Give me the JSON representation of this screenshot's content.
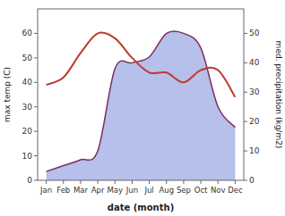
{
  "chart_data": {
    "type": "line",
    "xlabel": "date (month)",
    "ylabel": "max temp (C)",
    "y2label": "med. precipitation (kg/m2)",
    "categories": [
      "Jan",
      "Feb",
      "Mar",
      "Apr",
      "May",
      "Jun",
      "Jul",
      "Aug",
      "Sep",
      "Oct",
      "Nov",
      "Dec"
    ],
    "series": [
      {
        "type": "area",
        "axis": "y2",
        "color": "#aab4e8",
        "values": [
          3,
          5,
          7,
          10,
          38,
          40,
          42,
          50,
          50,
          45,
          25,
          18
        ]
      },
      {
        "type": "line",
        "axis": "y2",
        "color": "#7b3060",
        "values": [
          3,
          5,
          7,
          10,
          38,
          40,
          42,
          50,
          50,
          45,
          25,
          18
        ]
      },
      {
        "type": "line",
        "color": "#c0392b",
        "values": [
          39,
          42,
          52,
          60,
          58,
          50,
          44,
          44,
          40,
          45,
          45,
          34
        ]
      }
    ],
    "ylim": [
      0,
      70
    ],
    "yticks": [
      0,
      10,
      20,
      30,
      40,
      50,
      60
    ],
    "y2lim": [
      0,
      58.33
    ],
    "y2ticks": [
      0,
      10,
      20,
      30,
      40,
      50
    ],
    "grid": false
  }
}
